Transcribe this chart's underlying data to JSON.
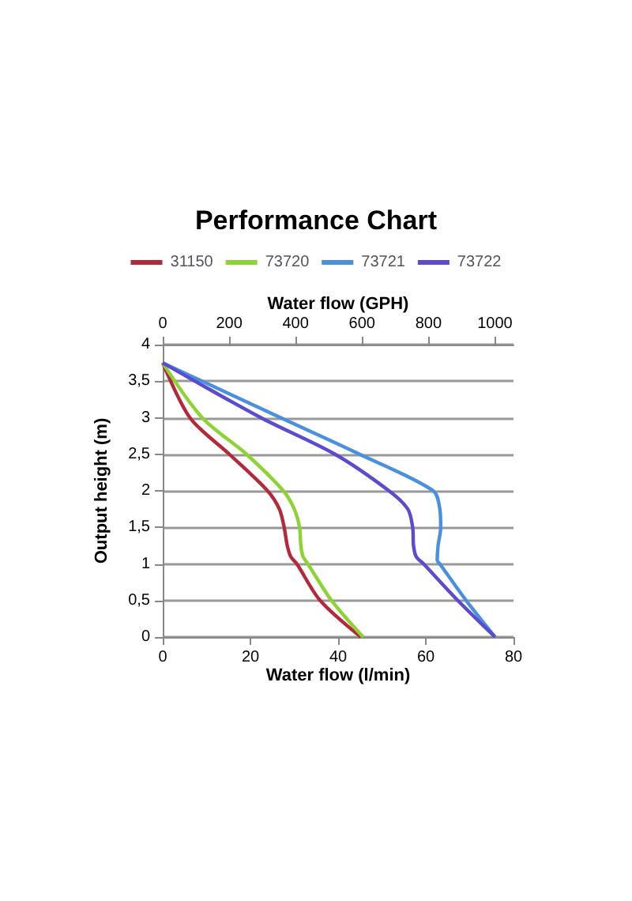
{
  "chart_data": {
    "type": "line",
    "title": "Performance Chart",
    "xlabel": "Water flow (l/min)",
    "x2label": "Water flow (GPH)",
    "ylabel": "Output height (m)",
    "xlim": [
      0,
      80
    ],
    "xticks": [
      0,
      20,
      40,
      60,
      80
    ],
    "x2lim": [
      0,
      1056
    ],
    "x2ticks": [
      0,
      200,
      400,
      600,
      800,
      1000
    ],
    "ylim": [
      0,
      4
    ],
    "yticks": [
      0,
      {
        "value": 0.5,
        "label": "0,5"
      },
      1,
      {
        "value": 1.5,
        "label": "1,5"
      },
      2,
      {
        "value": 2.5,
        "label": "2,5"
      },
      3,
      {
        "value": 3.5,
        "label": "3,5"
      },
      4
    ],
    "grid": "y",
    "legend": "top",
    "marker": "none",
    "series": [
      {
        "name": "31150",
        "color": "#b5283a",
        "x": [
          0,
          6.2,
          15.2,
          23.9,
          26.6,
          27.7,
          28.4,
          29.2,
          30.6,
          35.9,
          45.2
        ],
        "values": [
          3.75,
          3,
          2.5,
          2,
          1.75,
          1.5,
          1.25,
          1.1,
          1,
          0.5,
          0
        ]
      },
      {
        "name": "73720",
        "color": "#8ed334",
        "x": [
          0,
          9,
          19.1,
          27.5,
          30,
          31.2,
          31.5,
          32,
          33.1,
          38.5,
          45.7
        ],
        "values": [
          3.75,
          3,
          2.5,
          2,
          1.75,
          1.5,
          1.25,
          1.1,
          1,
          0.5,
          0
        ]
      },
      {
        "name": "73721",
        "color": "#4a90e0",
        "x": [
          0,
          26.9,
          44.9,
          61.7,
          63.2,
          63.4,
          62.8,
          62.6,
          63.2,
          69.2,
          75.8
        ],
        "values": [
          3.75,
          3,
          2.5,
          2,
          1.75,
          1.5,
          1.25,
          1.05,
          1,
          0.5,
          0
        ]
      },
      {
        "name": "73722",
        "color": "#5b4bd0",
        "x": [
          0,
          22.4,
          39.3,
          51.6,
          55.9,
          57,
          57.2,
          57.8,
          59.5,
          67.3,
          75.8
        ],
        "values": [
          3.75,
          3,
          2.5,
          2,
          1.75,
          1.5,
          1.25,
          1.1,
          1,
          0.5,
          0
        ]
      }
    ]
  }
}
